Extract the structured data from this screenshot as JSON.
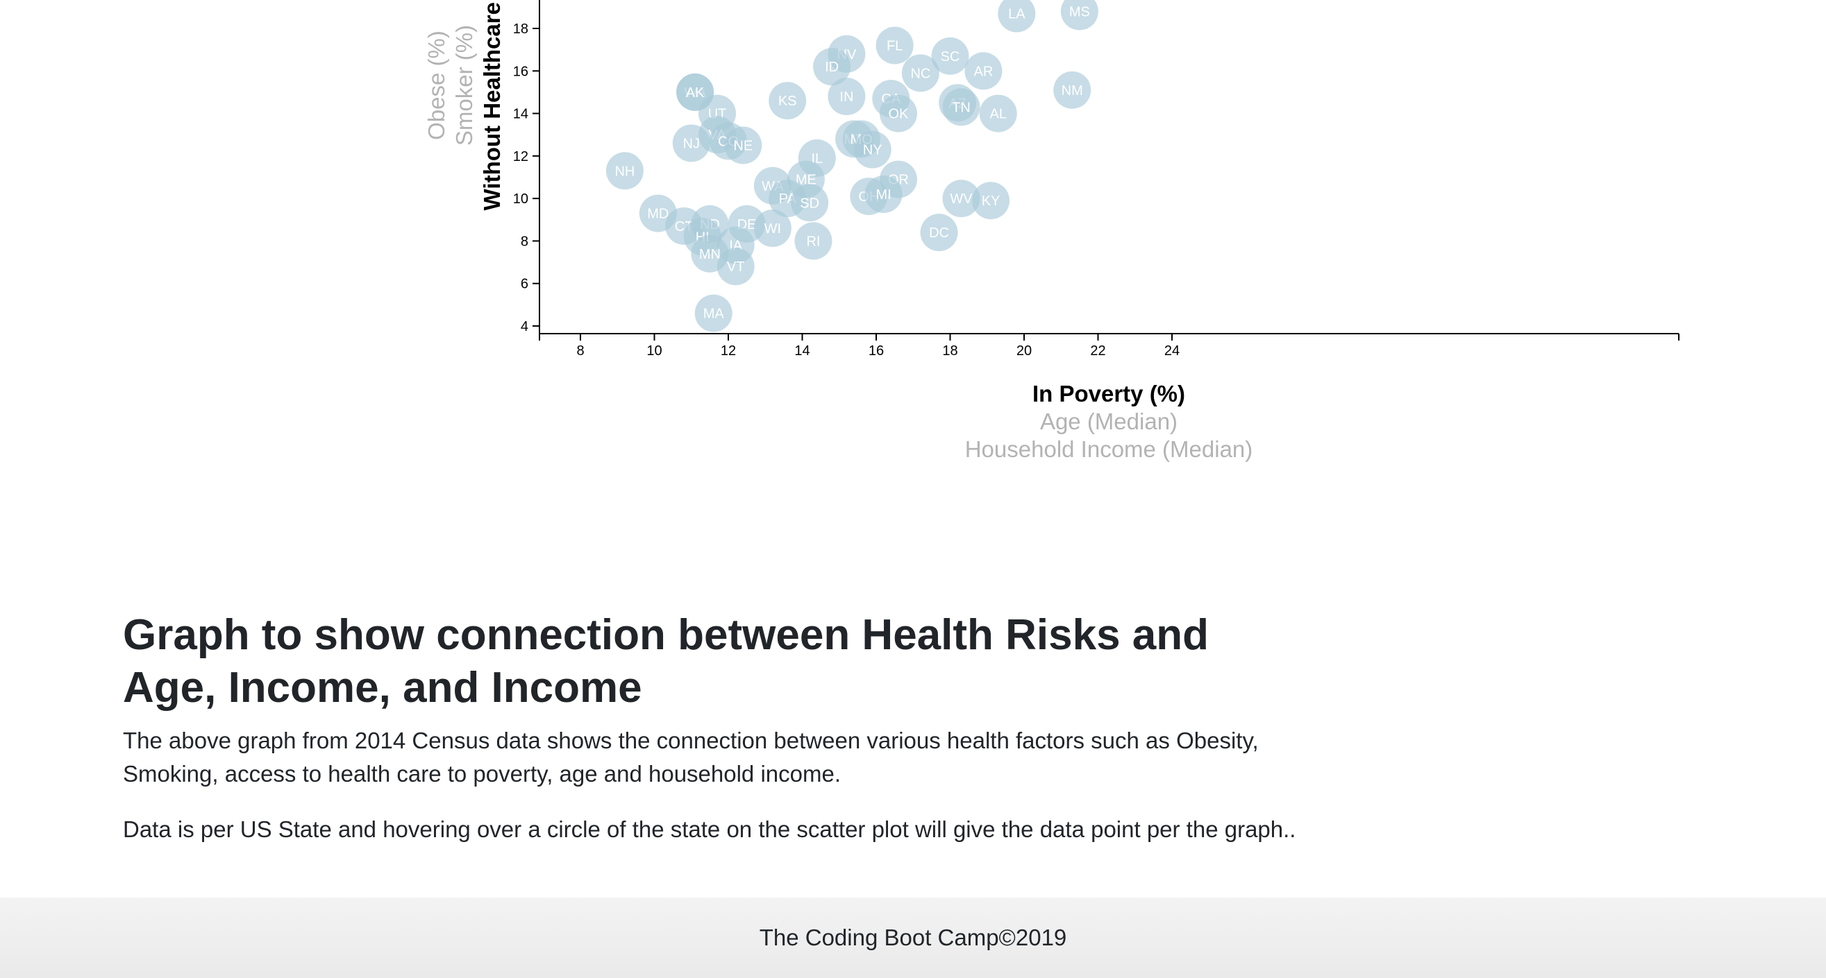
{
  "chart_data": {
    "type": "scatter",
    "xlabel": "In Poverty (%)",
    "xlabel_alternates": [
      "Age (Median)",
      "Household Income (Median)"
    ],
    "ylabel": "Without Healthcare (%)",
    "ylabel_alternates": [
      "Smoker (%)",
      "Obese (%)"
    ],
    "xlim": [
      7.4,
      25.8
    ],
    "ylim": [
      3.7,
      19.5
    ],
    "xticks": [
      8,
      10,
      12,
      14,
      16,
      18,
      20,
      22,
      24
    ],
    "yticks": [
      4,
      6,
      8,
      10,
      12,
      14,
      16,
      18
    ],
    "point_color": "#a9c9d9",
    "label_color": "#ffffff",
    "points": [
      {
        "state": "LA",
        "x": 19.8,
        "y": 18.7
      },
      {
        "state": "MS",
        "x": 21.5,
        "y": 18.8
      },
      {
        "state": "FL",
        "x": 16.5,
        "y": 17.2
      },
      {
        "state": "NV",
        "x": 15.2,
        "y": 16.8
      },
      {
        "state": "SC",
        "x": 18.0,
        "y": 16.7
      },
      {
        "state": "ID",
        "x": 14.8,
        "y": 16.2
      },
      {
        "state": "NC",
        "x": 17.2,
        "y": 15.9
      },
      {
        "state": "AR",
        "x": 18.9,
        "y": 16.0
      },
      {
        "state": "NM",
        "x": 21.3,
        "y": 15.1
      },
      {
        "state": "WA",
        "x": 11.1,
        "y": 15.0
      },
      {
        "state": "AK",
        "x": 11.1,
        "y": 15.0
      },
      {
        "state": "KS",
        "x": 13.6,
        "y": 14.6
      },
      {
        "state": "IN",
        "x": 15.2,
        "y": 14.8
      },
      {
        "state": "CA",
        "x": 16.4,
        "y": 14.7
      },
      {
        "state": "AZ",
        "x": 18.2,
        "y": 14.5
      },
      {
        "state": "TN",
        "x": 18.3,
        "y": 14.3
      },
      {
        "state": "OK",
        "x": 16.6,
        "y": 14.0
      },
      {
        "state": "AL",
        "x": 19.3,
        "y": 14.0
      },
      {
        "state": "UT",
        "x": 11.7,
        "y": 14.0
      },
      {
        "state": "VA",
        "x": 11.7,
        "y": 13.0
      },
      {
        "state": "CO",
        "x": 12.0,
        "y": 12.7
      },
      {
        "state": "NE",
        "x": 12.4,
        "y": 12.5
      },
      {
        "state": "NJ",
        "x": 11.0,
        "y": 12.6
      },
      {
        "state": "MT",
        "x": 15.4,
        "y": 12.8
      },
      {
        "state": "MO",
        "x": 15.6,
        "y": 12.8
      },
      {
        "state": "NY",
        "x": 15.9,
        "y": 12.3
      },
      {
        "state": "IL",
        "x": 14.4,
        "y": 11.9
      },
      {
        "state": "NH",
        "x": 9.2,
        "y": 11.3
      },
      {
        "state": "OR",
        "x": 16.6,
        "y": 10.9
      },
      {
        "state": "ME",
        "x": 14.1,
        "y": 10.9
      },
      {
        "state": "WA",
        "x": 13.2,
        "y": 10.6
      },
      {
        "state": "PA",
        "x": 13.6,
        "y": 10.0
      },
      {
        "state": "SD",
        "x": 14.2,
        "y": 9.8
      },
      {
        "state": "OH",
        "x": 15.8,
        "y": 10.1
      },
      {
        "state": "MI",
        "x": 16.2,
        "y": 10.2
      },
      {
        "state": "WV",
        "x": 18.3,
        "y": 10.0
      },
      {
        "state": "KY",
        "x": 19.1,
        "y": 9.9
      },
      {
        "state": "MD",
        "x": 10.1,
        "y": 9.3
      },
      {
        "state": "CT",
        "x": 10.8,
        "y": 8.7
      },
      {
        "state": "ND",
        "x": 11.5,
        "y": 8.8
      },
      {
        "state": "DE",
        "x": 12.5,
        "y": 8.8
      },
      {
        "state": "WI",
        "x": 13.2,
        "y": 8.6
      },
      {
        "state": "HI",
        "x": 11.3,
        "y": 8.2
      },
      {
        "state": "DC",
        "x": 17.7,
        "y": 8.4
      },
      {
        "state": "RI",
        "x": 14.3,
        "y": 8.0
      },
      {
        "state": "IA",
        "x": 12.2,
        "y": 7.8
      },
      {
        "state": "MN",
        "x": 11.5,
        "y": 7.4
      },
      {
        "state": "VT",
        "x": 12.2,
        "y": 6.8
      },
      {
        "state": "MA",
        "x": 11.6,
        "y": 4.6
      }
    ]
  },
  "content": {
    "heading": "Graph to show connection between Health Risks and Age, Income, and Income",
    "paragraph1": "The above graph from 2014 Census data shows the connection between various health factors such as Obesity, Smoking, access to health care to poverty, age and household income.",
    "paragraph2": "Data is per US State and hovering over a circle of the state on the scatter plot will give the data point per the graph.."
  },
  "footer": {
    "text": "The Coding Boot Camp©2019"
  }
}
